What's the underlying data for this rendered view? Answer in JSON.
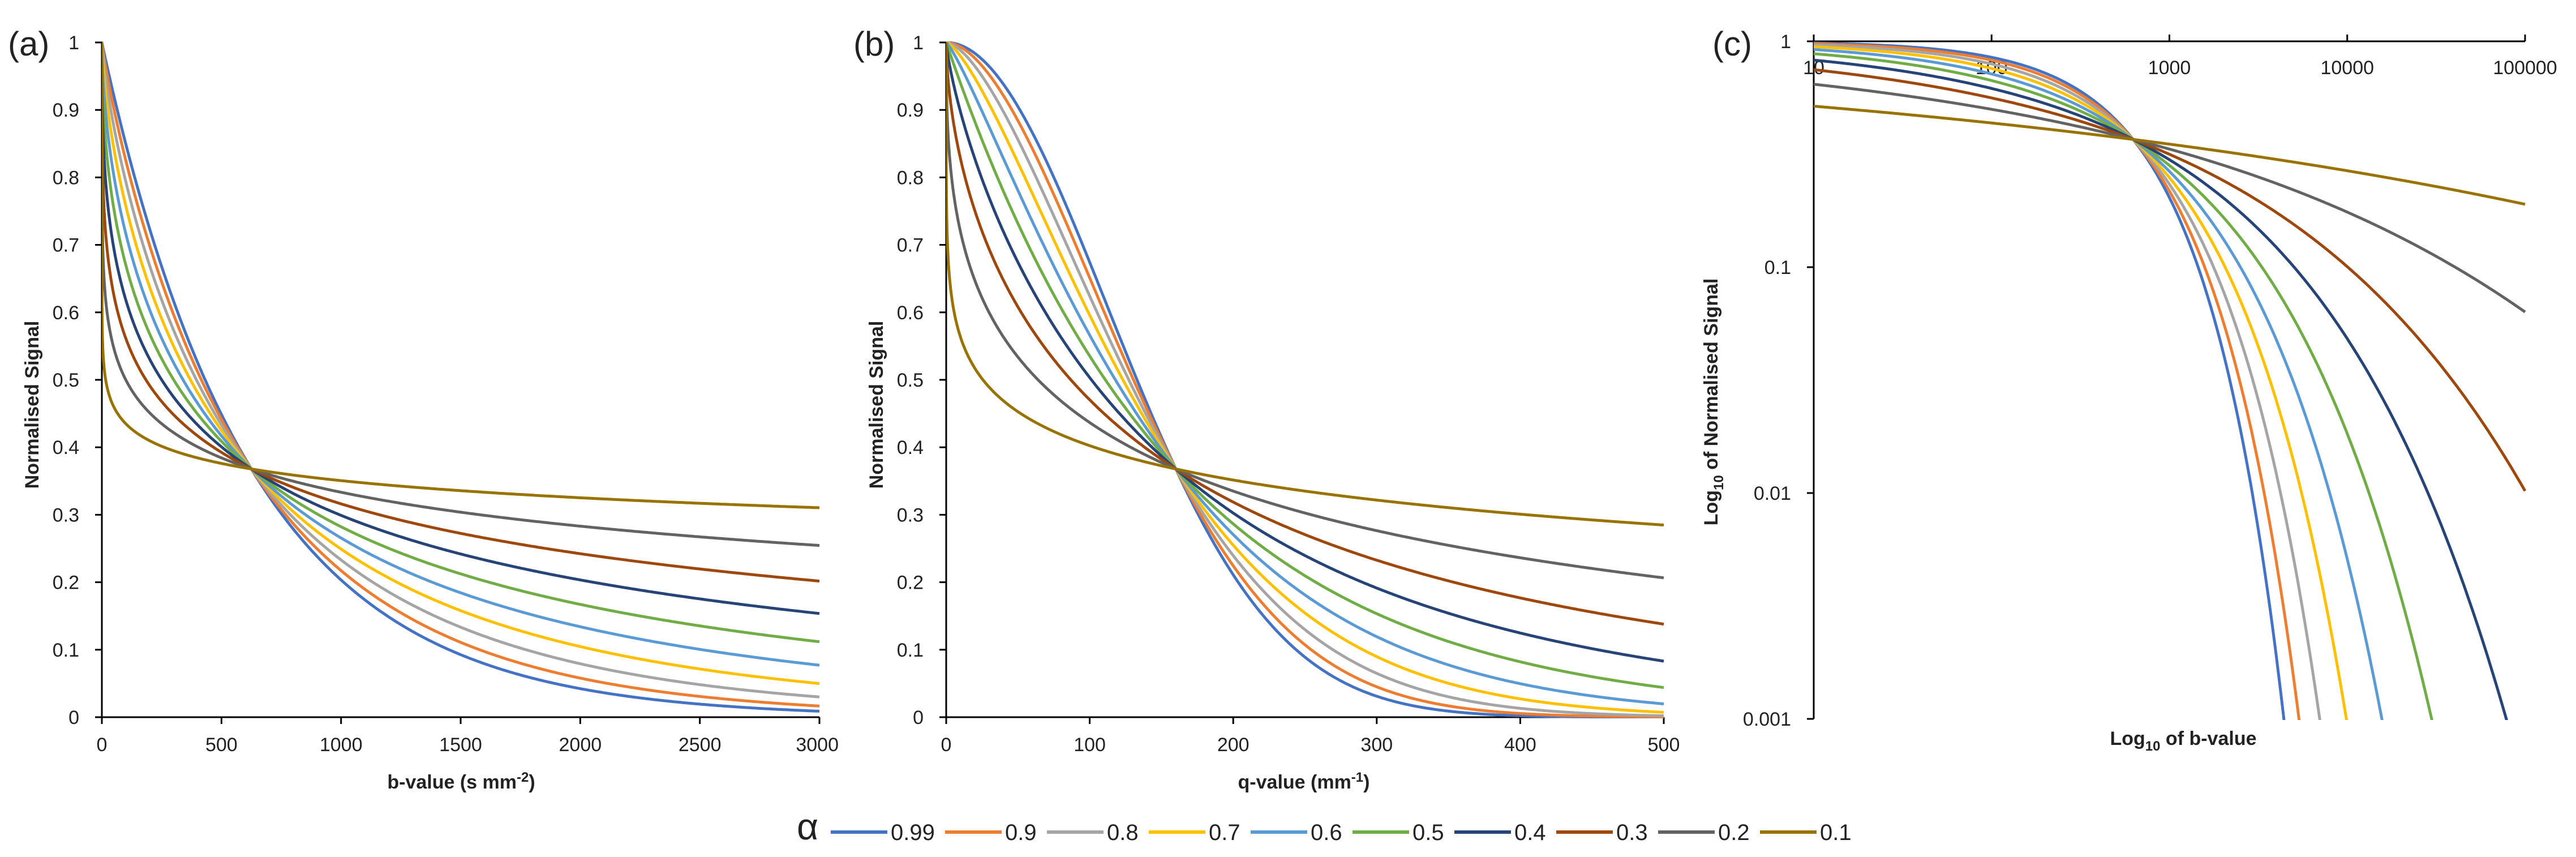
{
  "chart_data": [
    {
      "type": "line",
      "panel_label": "(a)",
      "title": "",
      "xlabel": "b-value (s mm",
      "xlabel_sup": "-2",
      "xlabel_end": ")",
      "ylabel": "Normalised Signal",
      "xlim": [
        0,
        3000
      ],
      "ylim": [
        0,
        1
      ],
      "x_ticks": [
        "0",
        "500",
        "1000",
        "1500",
        "2000",
        "2500",
        "3000"
      ],
      "y_ticks": [
        "0",
        "0.1",
        "0.2",
        "0.3",
        "0.4",
        "0.5",
        "0.6",
        "0.7",
        "0.8",
        "0.9",
        "1"
      ],
      "model": "exp(-(b*0.0016)^alpha)",
      "series_source": "alpha = 0.99, 0.9, 0.8, 0.7, 0.6, 0.5, 0.4, 0.3, 0.2, 0.1"
    },
    {
      "type": "line",
      "panel_label": "(b)",
      "title": "",
      "xlabel": "q-value (mm",
      "xlabel_sup": "-1",
      "xlabel_end": ")",
      "ylabel": "Normalised Signal",
      "xlim": [
        0,
        500
      ],
      "ylim": [
        0,
        1
      ],
      "x_ticks": [
        "0",
        "100",
        "200",
        "300",
        "400",
        "500"
      ],
      "y_ticks": [
        "0",
        "0.1",
        "0.2",
        "0.3",
        "0.4",
        "0.5",
        "0.6",
        "0.7",
        "0.8",
        "0.9",
        "1"
      ],
      "model": "exp(-(q/160)^(2*alpha))"
    },
    {
      "type": "line",
      "panel_label": "(c)",
      "title": "",
      "xlabel": "Log",
      "xlabel_sub": "10",
      "xlabel_end": " of b-value",
      "ylabel": "Log",
      "ylabel_sub": "10",
      "ylabel_end": " of Normalised Signal",
      "x_scale": "log",
      "y_scale": "log",
      "xlim": [
        10,
        100000
      ],
      "ylim": [
        0.001,
        1
      ],
      "x_ticks": [
        "10",
        "100",
        "1000",
        "10000",
        "100000"
      ],
      "y_ticks": [
        "0.001",
        "0.01",
        "0.1",
        "1"
      ],
      "model": "exp(-(b*0.0016)^alpha)"
    }
  ],
  "series": [
    {
      "name": "0.99",
      "alpha": 0.99,
      "color": "#4472C4"
    },
    {
      "name": "0.9",
      "alpha": 0.9,
      "color": "#ED7D31"
    },
    {
      "name": "0.8",
      "alpha": 0.8,
      "color": "#A5A5A5"
    },
    {
      "name": "0.7",
      "alpha": 0.7,
      "color": "#FFC000"
    },
    {
      "name": "0.6",
      "alpha": 0.6,
      "color": "#5B9BD5"
    },
    {
      "name": "0.5",
      "alpha": 0.5,
      "color": "#70AD47"
    },
    {
      "name": "0.4",
      "alpha": 0.4,
      "color": "#264478"
    },
    {
      "name": "0.3",
      "alpha": 0.3,
      "color": "#9E480E"
    },
    {
      "name": "0.2",
      "alpha": 0.2,
      "color": "#636363"
    },
    {
      "name": "0.1",
      "alpha": 0.1,
      "color": "#997300"
    }
  ],
  "legend": {
    "symbol": "α",
    "position": "bottom-center"
  },
  "axis_color": "#000000"
}
